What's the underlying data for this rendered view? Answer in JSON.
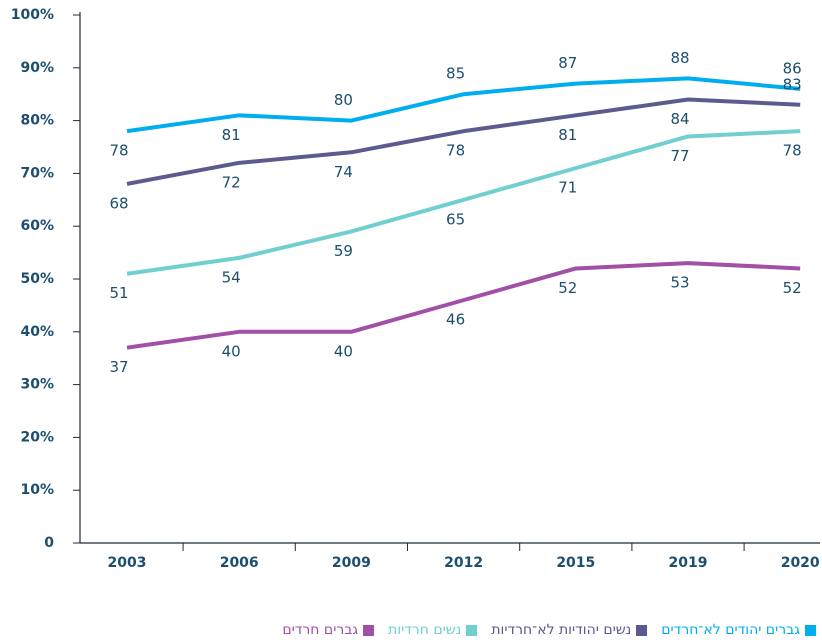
{
  "chart_data": {
    "type": "line",
    "categories": [
      "2003",
      "2006",
      "2009",
      "2012",
      "2015",
      "2019",
      "2020"
    ],
    "series": [
      {
        "name": "גברים יהודים לא־חרדים",
        "color": "#00aeef",
        "values": [
          78,
          81,
          80,
          85,
          87,
          88,
          86
        ]
      },
      {
        "name": "נשים יהודיות לא־חרדיות",
        "color": "#5c5a8e",
        "values": [
          68,
          72,
          74,
          78,
          81,
          84,
          83
        ]
      },
      {
        "name": "נשים חרדיות",
        "color": "#72cfcf",
        "values": [
          51,
          54,
          59,
          65,
          71,
          77,
          78
        ]
      },
      {
        "name": "גברים חרדים",
        "color": "#a24fa6",
        "values": [
          37,
          40,
          40,
          46,
          52,
          53,
          52
        ]
      }
    ],
    "ylim": [
      0,
      100
    ],
    "yticks": [
      0,
      {
        "value": 10,
        "label": "10%"
      },
      {
        "value": 20,
        "label": "20%"
      },
      {
        "value": 30,
        "label": "30%"
      },
      {
        "value": 40,
        "label": "40%"
      },
      {
        "value": 50,
        "label": "50%"
      },
      {
        "value": 60,
        "label": "60%"
      },
      {
        "value": 70,
        "label": "70%"
      },
      {
        "value": 80,
        "label": "80%"
      },
      {
        "value": 90,
        "label": "90%"
      },
      {
        "value": 100,
        "label": "100%"
      }
    ]
  }
}
